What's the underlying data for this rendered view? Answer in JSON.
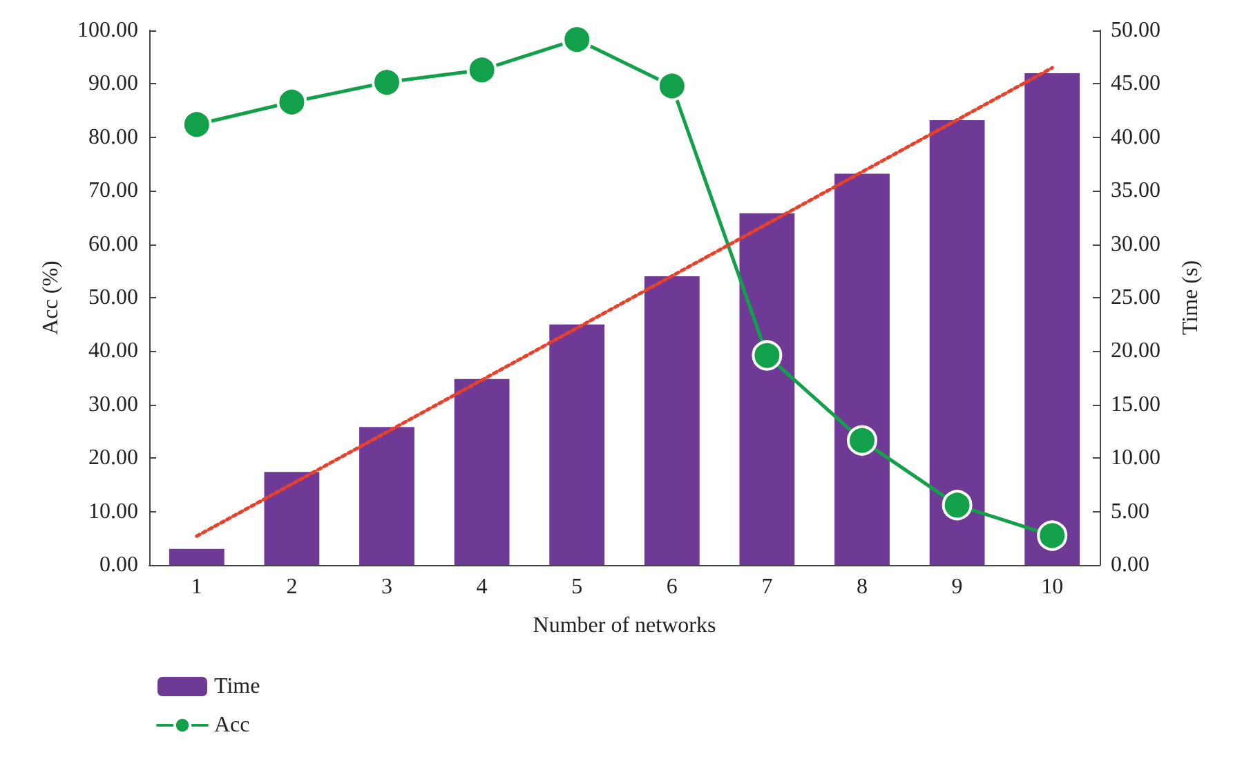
{
  "chart_data": {
    "type": "bar",
    "xlabel": "Number of networks",
    "ylabel": "Acc (%)",
    "y2label": "Time (s)",
    "categories": [
      "1",
      "2",
      "3",
      "4",
      "5",
      "6",
      "7",
      "8",
      "9",
      "10"
    ],
    "ylim": [
      0,
      100
    ],
    "yticks": [
      {
        "value": 0,
        "label": "0.00"
      },
      {
        "value": 10,
        "label": "10.00"
      },
      {
        "value": 20,
        "label": "20.00"
      },
      {
        "value": 30,
        "label": "30.00"
      },
      {
        "value": 40,
        "label": "40.00"
      },
      {
        "value": 50,
        "label": "50.00"
      },
      {
        "value": 60,
        "label": "60.00"
      },
      {
        "value": 70,
        "label": "70.00"
      },
      {
        "value": 80,
        "label": "80.00"
      },
      {
        "value": 90,
        "label": "90.00"
      },
      {
        "value": 100,
        "label": "100.00"
      }
    ],
    "y2lim": [
      0,
      50
    ],
    "y2ticks": [
      {
        "value": 0,
        "label": "0.00"
      },
      {
        "value": 5,
        "label": "5.00"
      },
      {
        "value": 10,
        "label": "10.00"
      },
      {
        "value": 15,
        "label": "15.00"
      },
      {
        "value": 20,
        "label": "20.00"
      },
      {
        "value": 25,
        "label": "25.00"
      },
      {
        "value": 30,
        "label": "30.00"
      },
      {
        "value": 35,
        "label": "35.00"
      },
      {
        "value": 40,
        "label": "40.00"
      },
      {
        "value": 45,
        "label": "45.00"
      },
      {
        "value": 50,
        "label": "50.00"
      }
    ],
    "series": [
      {
        "name": "Time",
        "axis": "y2",
        "color": "#6f3a96",
        "values": [
          1.5,
          8.7,
          12.9,
          17.4,
          22.5,
          27.0,
          32.9,
          36.6,
          41.6,
          46.0
        ]
      },
      {
        "name": "Acc",
        "type": "line",
        "marker": "circle",
        "color": "#12a04a",
        "values": [
          82.4,
          86.6,
          90.3,
          92.6,
          98.3,
          89.6,
          39.2,
          23.3,
          11.2,
          5.5
        ]
      },
      {
        "type": "line",
        "axis": "y2",
        "line_style": "dotted",
        "marker": "none",
        "color": "#e8402a",
        "x": [
          "1",
          "10"
        ],
        "values": [
          2.7,
          46.5
        ]
      }
    ],
    "legend": "bottom left",
    "grid": false
  }
}
